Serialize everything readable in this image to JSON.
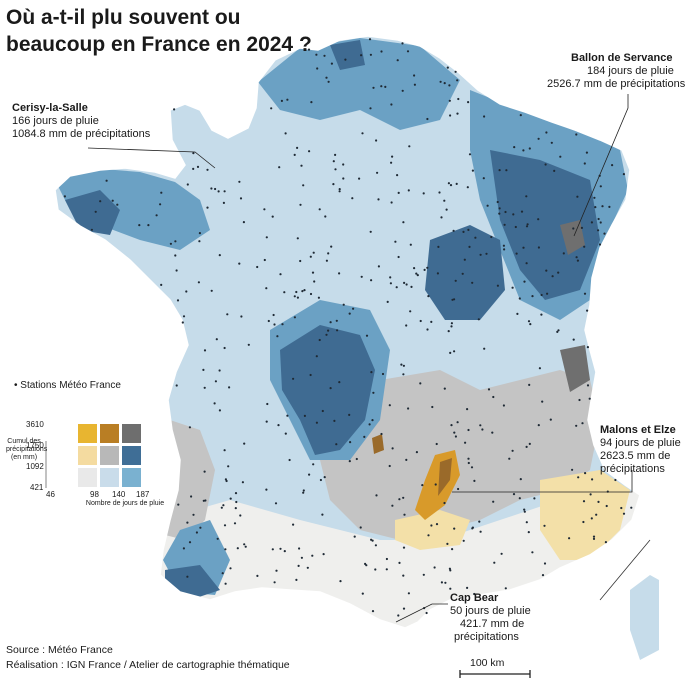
{
  "title_line1": "Où a-t-il plu souvent ou",
  "title_line2": "beaucoup en France en 2024 ?",
  "annotations": {
    "cerisy": {
      "name": "Cerisy-la-Salle",
      "line1": "166 jours de pluie",
      "line2": "1084.8 mm de précipitations"
    },
    "ballon": {
      "name": "Ballon de Servance",
      "line1": "184 jours de pluie",
      "line2": "2526.7 mm de précipitations"
    },
    "malons": {
      "name": "Malons et Elze",
      "line1": "94 jours de pluie",
      "line2": "2623.5 mm de",
      "line3": "précipitations"
    },
    "capbear": {
      "name": "Cap Bear",
      "line1": "50 jours de pluie",
      "line2": "421.7 mm de",
      "line3": "précipitations"
    }
  },
  "legend": {
    "stations_label": "Stations Météo France",
    "y_title": "Cumul des précipitations (en mm)",
    "y_ticks": [
      "3610",
      "1750",
      "1092",
      "421"
    ],
    "x_ticks": [
      "46",
      "98",
      "140",
      "187"
    ],
    "x_title": "Nombre de jours de pluie",
    "matrix_colors": [
      [
        "#e8b530",
        "#b97e24",
        "#6e6e6e"
      ],
      [
        "#f4dba0",
        "#b8b8b8",
        "#3f6e96"
      ],
      [
        "#e9e9e9",
        "#c9dcea",
        "#7ab1d0"
      ]
    ]
  },
  "colors": {
    "very_light": "#efefed",
    "light_blue": "#c6dcea",
    "mid_blue": "#6ba1c4",
    "dark_blue": "#3f6b92",
    "grey": "#c4c4c4",
    "dark_grey": "#6f6f6f",
    "yellow_light": "#f3e0a8",
    "orange": "#d89a2a",
    "brown": "#9a6a2a",
    "stroke": "#ffffff"
  },
  "footer": {
    "source": "Source : Météo France",
    "credit": "Réalisation : IGN France / Atelier de cartographie thématique"
  },
  "scale_bar_label": "100 km"
}
